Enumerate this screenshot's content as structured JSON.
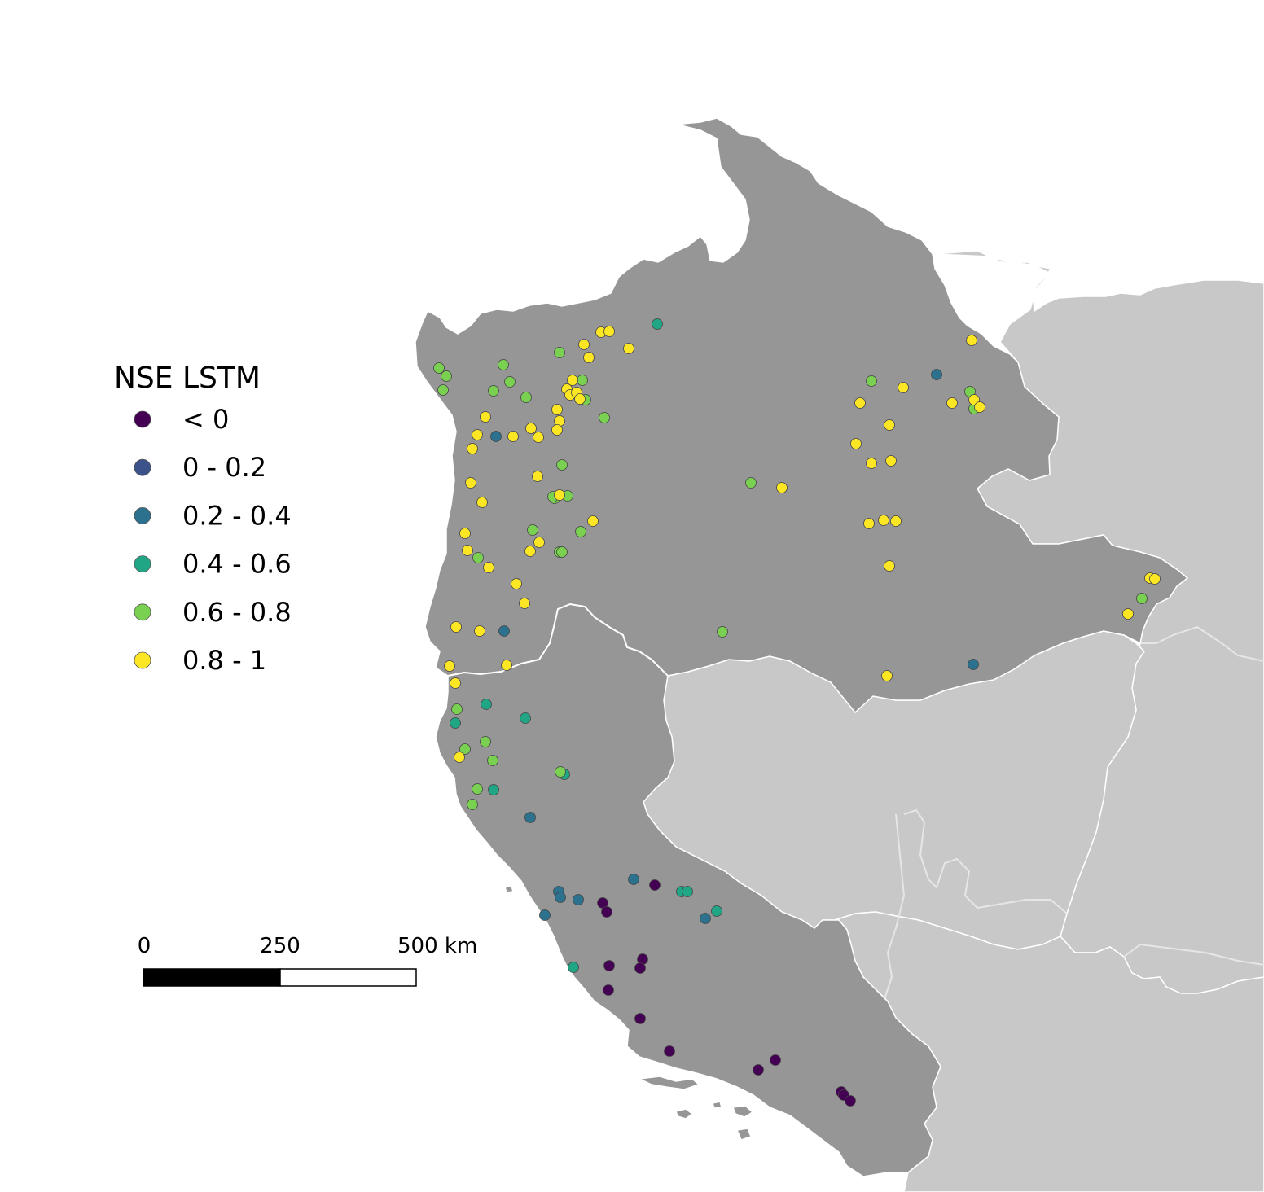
{
  "legend": {
    "title": "NSE LSTM",
    "classes": [
      {
        "label": "< 0",
        "color": "#440154"
      },
      {
        "label": "0 - 0.2",
        "color": "#3b528b"
      },
      {
        "label": "0.2 - 0.4",
        "color": "#2c728e"
      },
      {
        "label": "0.4 - 0.6",
        "color": "#21a685"
      },
      {
        "label": "0.6 - 0.8",
        "color": "#7ad151"
      },
      {
        "label": "0.8 - 1",
        "color": "#fde725"
      }
    ]
  },
  "scale_bar": {
    "labels": [
      "0",
      "250",
      "500 km"
    ]
  },
  "map_colors": {
    "study_region": "#969696",
    "other_regions": "#c8c8c8",
    "boundary": "#ffffff",
    "sea": "#ffffff"
  },
  "chart_data": {
    "type": "scatter",
    "title": "",
    "xlabel": "",
    "ylabel": "",
    "series": [
      {
        "name": "< 0",
        "color": "#440154",
        "points": [
          [
            740,
            1109
          ],
          [
            745,
            1120
          ],
          [
            804,
            1087
          ],
          [
            789,
            1178
          ],
          [
            786,
            1189
          ],
          [
            748,
            1186
          ],
          [
            747,
            1216
          ],
          [
            786,
            1251
          ],
          [
            822,
            1291
          ],
          [
            952,
            1302
          ],
          [
            931,
            1314
          ],
          [
            1033,
            1341
          ],
          [
            1036,
            1345
          ],
          [
            1044,
            1352
          ]
        ]
      },
      {
        "name": "0 - 0.2",
        "color": "#3b528b",
        "points": []
      },
      {
        "name": "0.2 - 0.4",
        "color": "#2c728e",
        "points": [
          [
            609,
            536
          ],
          [
            1150,
            460
          ],
          [
            619,
            775
          ],
          [
            1195,
            816
          ],
          [
            651,
            1004
          ],
          [
            686,
            1095
          ],
          [
            688,
            1102
          ],
          [
            710,
            1105
          ],
          [
            669,
            1124
          ],
          [
            778,
            1080
          ],
          [
            866,
            1128
          ]
        ]
      },
      {
        "name": "0.4 - 0.6",
        "color": "#21a685",
        "points": [
          [
            807,
            398
          ],
          [
            597,
            865
          ],
          [
            559,
            888
          ],
          [
            645,
            882
          ],
          [
            606,
            970
          ],
          [
            693,
            951
          ],
          [
            837,
            1095
          ],
          [
            844,
            1095
          ],
          [
            880,
            1119
          ],
          [
            704,
            1188
          ]
        ]
      },
      {
        "name": "0.6 - 0.8",
        "color": "#7ad151",
        "points": [
          [
            539,
            452
          ],
          [
            548,
            462
          ],
          [
            544,
            479
          ],
          [
            618,
            448
          ],
          [
            626,
            469
          ],
          [
            606,
            480
          ],
          [
            646,
            488
          ],
          [
            687,
            433
          ],
          [
            715,
            467
          ],
          [
            719,
            491
          ],
          [
            742,
            513
          ],
          [
            690,
            571
          ],
          [
            697,
            609
          ],
          [
            681,
            612
          ],
          [
            679,
            610
          ],
          [
            654,
            651
          ],
          [
            713,
            653
          ],
          [
            687,
            678
          ],
          [
            690,
            678
          ],
          [
            587,
            685
          ],
          [
            1070,
            468
          ],
          [
            1191,
            481
          ],
          [
            1196,
            502
          ],
          [
            922,
            593
          ],
          [
            887,
            776
          ],
          [
            1402,
            735
          ],
          [
            561,
            871
          ],
          [
            571,
            920
          ],
          [
            596,
            911
          ],
          [
            605,
            934
          ],
          [
            586,
            969
          ],
          [
            580,
            988
          ],
          [
            688,
            948
          ]
        ]
      },
      {
        "name": "0.8 - 1",
        "color": "#fde725",
        "points": [
          [
            738,
            408
          ],
          [
            748,
            407
          ],
          [
            717,
            423
          ],
          [
            772,
            428
          ],
          [
            723,
            439
          ],
          [
            703,
            467
          ],
          [
            696,
            478
          ],
          [
            700,
            485
          ],
          [
            708,
            482
          ],
          [
            712,
            490
          ],
          [
            684,
            503
          ],
          [
            687,
            517
          ],
          [
            684,
            528
          ],
          [
            596,
            512
          ],
          [
            586,
            534
          ],
          [
            630,
            536
          ],
          [
            652,
            526
          ],
          [
            661,
            537
          ],
          [
            580,
            551
          ],
          [
            660,
            585
          ],
          [
            578,
            593
          ],
          [
            592,
            617
          ],
          [
            687,
            608
          ],
          [
            728,
            640
          ],
          [
            571,
            655
          ],
          [
            662,
            666
          ],
          [
            651,
            677
          ],
          [
            574,
            676
          ],
          [
            600,
            697
          ],
          [
            634,
            717
          ],
          [
            644,
            741
          ],
          [
            560,
            770
          ],
          [
            589,
            775
          ],
          [
            622,
            817
          ],
          [
            552,
            818
          ],
          [
            559,
            839
          ],
          [
            564,
            930
          ],
          [
            1193,
            418
          ],
          [
            1109,
            476
          ],
          [
            1056,
            495
          ],
          [
            1169,
            495
          ],
          [
            1196,
            491
          ],
          [
            1203,
            500
          ],
          [
            1092,
            522
          ],
          [
            1051,
            545
          ],
          [
            1094,
            566
          ],
          [
            1070,
            569
          ],
          [
            960,
            599
          ],
          [
            1067,
            643
          ],
          [
            1085,
            639
          ],
          [
            1100,
            640
          ],
          [
            1092,
            695
          ],
          [
            1089,
            830
          ],
          [
            1412,
            710
          ],
          [
            1418,
            711
          ],
          [
            1385,
            754
          ]
        ]
      }
    ]
  }
}
